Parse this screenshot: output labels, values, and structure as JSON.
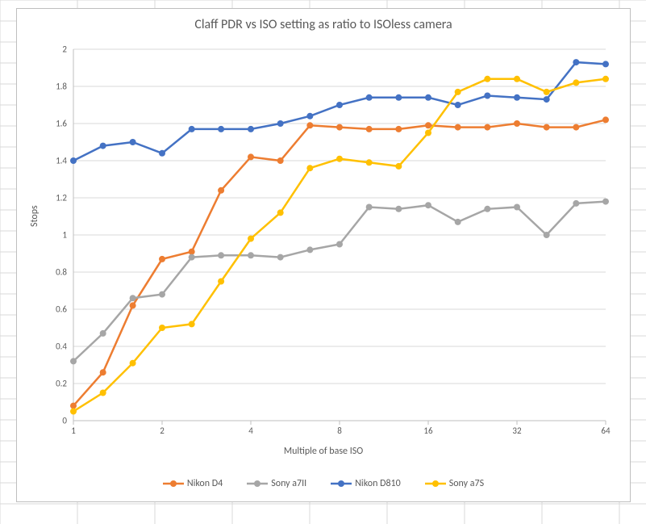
{
  "chart": {
    "title": "Claff PDR vs ISO setting as ratio to ISOless camera",
    "type": "line",
    "xlabel": "Multiple of base ISO",
    "ylabel": "Stops",
    "xscale": "log2",
    "xlim": [
      1,
      64
    ],
    "xticks": [
      1,
      2,
      4,
      8,
      16,
      32,
      64
    ],
    "ylim": [
      0,
      2
    ],
    "yticks": [
      0,
      0.2,
      0.4,
      0.6,
      0.8,
      1,
      1.2,
      1.4,
      1.6,
      1.8,
      2
    ],
    "background_color": "#ffffff",
    "grid_color": "#d9d9d9",
    "axis_color": "#bfbfbf",
    "text_color": "#595959",
    "title_fontsize": 16,
    "label_fontsize": 12,
    "tick_fontsize": 11,
    "line_width": 2.5,
    "marker_size": 4,
    "x_values": [
      1,
      1.26,
      1.59,
      2,
      2.52,
      3.17,
      4,
      5.04,
      6.35,
      8,
      10.08,
      12.7,
      16,
      20.16,
      25.4,
      32,
      40.32,
      50.8,
      64
    ],
    "series": [
      {
        "name": "Nikon D4",
        "color": "#ed7d31",
        "y": [
          0.08,
          0.26,
          0.62,
          0.87,
          0.91,
          1.24,
          1.42,
          1.4,
          1.59,
          1.58,
          1.57,
          1.57,
          1.59,
          1.58,
          1.58,
          1.6,
          1.58,
          1.58,
          1.62
        ]
      },
      {
        "name": "Sony a7II",
        "color": "#a6a6a6",
        "y": [
          0.32,
          0.47,
          0.66,
          0.68,
          0.88,
          0.89,
          0.89,
          0.88,
          0.92,
          0.95,
          1.15,
          1.14,
          1.16,
          1.07,
          1.14,
          1.15,
          1.0,
          1.17,
          1.18
        ]
      },
      {
        "name": "Nikon D810",
        "color": "#4472c4",
        "y": [
          1.4,
          1.48,
          1.5,
          1.44,
          1.57,
          1.57,
          1.57,
          1.6,
          1.64,
          1.7,
          1.74,
          1.74,
          1.74,
          1.7,
          1.75,
          1.74,
          1.73,
          1.93,
          1.92
        ]
      },
      {
        "name": "Sony a7S",
        "color": "#ffc000",
        "y": [
          0.05,
          0.15,
          0.31,
          0.5,
          0.52,
          0.75,
          0.98,
          1.12,
          1.36,
          1.41,
          1.39,
          1.37,
          1.55,
          1.77,
          1.84,
          1.84,
          1.77,
          1.82,
          1.84
        ]
      }
    ]
  }
}
